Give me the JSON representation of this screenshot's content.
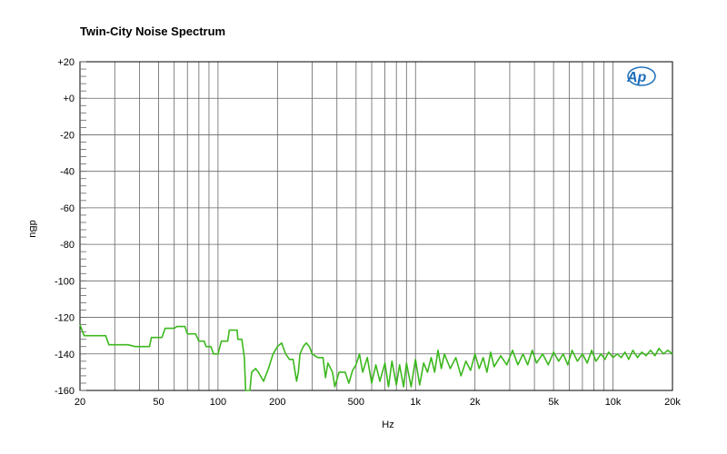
{
  "chart_data": {
    "type": "line",
    "title": "Twin-City Noise Spectrum",
    "xlabel": "Hz",
    "ylabel": "dBu",
    "x_scale": "log",
    "xlim": [
      20,
      20000
    ],
    "ylim": [
      -160,
      20
    ],
    "grid": true,
    "x_tick_values": [
      20,
      50,
      100,
      200,
      500,
      1000,
      2000,
      5000,
      10000,
      20000
    ],
    "x_tick_labels": [
      "20",
      "50",
      "100",
      "200",
      "500",
      "1k",
      "2k",
      "5k",
      "10k",
      "20k"
    ],
    "y_tick_values": [
      20,
      0,
      -20,
      -40,
      -60,
      -80,
      -100,
      -120,
      -140,
      -160
    ],
    "y_tick_labels": [
      "+20",
      "+0",
      "-20",
      "-40",
      "-60",
      "-80",
      "-100",
      "-120",
      "-140",
      "-160"
    ],
    "logo_text": "Ap",
    "series": [
      {
        "color": "#3cb81e",
        "points": [
          [
            20,
            -124
          ],
          [
            21,
            -130
          ],
          [
            25,
            -130
          ],
          [
            27,
            -130
          ],
          [
            28,
            -135
          ],
          [
            33,
            -135
          ],
          [
            35,
            -135
          ],
          [
            38,
            -136
          ],
          [
            42,
            -136
          ],
          [
            45,
            -136
          ],
          [
            46,
            -131
          ],
          [
            52,
            -131
          ],
          [
            54,
            -126
          ],
          [
            60,
            -126
          ],
          [
            62,
            -125
          ],
          [
            68,
            -125
          ],
          [
            70,
            -129
          ],
          [
            77,
            -129
          ],
          [
            80,
            -133
          ],
          [
            85,
            -133
          ],
          [
            87,
            -136
          ],
          [
            92,
            -136
          ],
          [
            95,
            -140
          ],
          [
            100,
            -140
          ],
          [
            104,
            -133
          ],
          [
            112,
            -133
          ],
          [
            114,
            -127
          ],
          [
            125,
            -127
          ],
          [
            126,
            -132
          ],
          [
            132,
            -132
          ],
          [
            136,
            -142
          ],
          [
            138,
            -160
          ],
          [
            145,
            -160
          ],
          [
            148,
            -150
          ],
          [
            155,
            -148
          ],
          [
            160,
            -150
          ],
          [
            170,
            -155
          ],
          [
            180,
            -148
          ],
          [
            190,
            -140
          ],
          [
            200,
            -136
          ],
          [
            210,
            -134
          ],
          [
            220,
            -140
          ],
          [
            230,
            -143
          ],
          [
            240,
            -143
          ],
          [
            250,
            -155
          ],
          [
            255,
            -150
          ],
          [
            260,
            -140
          ],
          [
            270,
            -136
          ],
          [
            280,
            -134
          ],
          [
            290,
            -136
          ],
          [
            300,
            -140
          ],
          [
            320,
            -142
          ],
          [
            340,
            -142
          ],
          [
            350,
            -153
          ],
          [
            360,
            -145
          ],
          [
            380,
            -150
          ],
          [
            390,
            -158
          ],
          [
            410,
            -150
          ],
          [
            440,
            -150
          ],
          [
            460,
            -156
          ],
          [
            480,
            -149
          ],
          [
            500,
            -146
          ],
          [
            520,
            -140
          ],
          [
            540,
            -150
          ],
          [
            570,
            -142
          ],
          [
            600,
            -156
          ],
          [
            630,
            -146
          ],
          [
            660,
            -155
          ],
          [
            700,
            -145
          ],
          [
            730,
            -158
          ],
          [
            760,
            -144
          ],
          [
            800,
            -157
          ],
          [
            830,
            -146
          ],
          [
            870,
            -158
          ],
          [
            900,
            -145
          ],
          [
            950,
            -158
          ],
          [
            1000,
            -143
          ],
          [
            1050,
            -157
          ],
          [
            1100,
            -145
          ],
          [
            1150,
            -150
          ],
          [
            1200,
            -142
          ],
          [
            1250,
            -150
          ],
          [
            1300,
            -138
          ],
          [
            1350,
            -148
          ],
          [
            1400,
            -140
          ],
          [
            1500,
            -148
          ],
          [
            1600,
            -142
          ],
          [
            1700,
            -152
          ],
          [
            1800,
            -144
          ],
          [
            1900,
            -149
          ],
          [
            2000,
            -140
          ],
          [
            2100,
            -148
          ],
          [
            2200,
            -142
          ],
          [
            2300,
            -150
          ],
          [
            2400,
            -139
          ],
          [
            2500,
            -147
          ],
          [
            2700,
            -141
          ],
          [
            2900,
            -146
          ],
          [
            3100,
            -138
          ],
          [
            3300,
            -146
          ],
          [
            3500,
            -140
          ],
          [
            3700,
            -146
          ],
          [
            3900,
            -138
          ],
          [
            4100,
            -145
          ],
          [
            4400,
            -140
          ],
          [
            4700,
            -146
          ],
          [
            5000,
            -139
          ],
          [
            5300,
            -144
          ],
          [
            5600,
            -140
          ],
          [
            5900,
            -146
          ],
          [
            6200,
            -138
          ],
          [
            6600,
            -144
          ],
          [
            7000,
            -140
          ],
          [
            7400,
            -145
          ],
          [
            7800,
            -138
          ],
          [
            8200,
            -144
          ],
          [
            8700,
            -140
          ],
          [
            9100,
            -143
          ],
          [
            9500,
            -139
          ],
          [
            10000,
            -142
          ],
          [
            10500,
            -140
          ],
          [
            11000,
            -142
          ],
          [
            11500,
            -139
          ],
          [
            12000,
            -143
          ],
          [
            12600,
            -138
          ],
          [
            13300,
            -142
          ],
          [
            14000,
            -139
          ],
          [
            14700,
            -141
          ],
          [
            15500,
            -138
          ],
          [
            16300,
            -141
          ],
          [
            17100,
            -137
          ],
          [
            18000,
            -140
          ],
          [
            18900,
            -138
          ],
          [
            20000,
            -140
          ]
        ]
      }
    ]
  }
}
